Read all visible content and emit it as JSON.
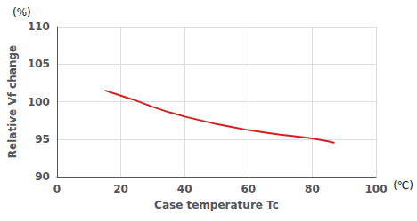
{
  "chart_data": {
    "type": "line",
    "x": [
      15,
      20,
      25,
      30,
      35,
      40,
      45,
      50,
      55,
      60,
      65,
      70,
      75,
      80,
      85,
      87
    ],
    "values": [
      101.5,
      100.8,
      100.1,
      99.3,
      98.6,
      98.0,
      97.5,
      97.0,
      96.6,
      96.2,
      95.9,
      95.6,
      95.35,
      95.1,
      94.7,
      94.5
    ],
    "color": "#d42020",
    "xlabel": "Case temperature Tc",
    "ylabel": "Relative Vf change",
    "annotations": [
      "(%)",
      "(℃)"
    ],
    "xlim": [
      0,
      100
    ],
    "ylim": [
      90,
      110
    ],
    "xticks": [
      0,
      20,
      40,
      60,
      80,
      100
    ],
    "yticks": [
      90,
      95,
      100,
      105,
      110
    ],
    "grid": true
  }
}
